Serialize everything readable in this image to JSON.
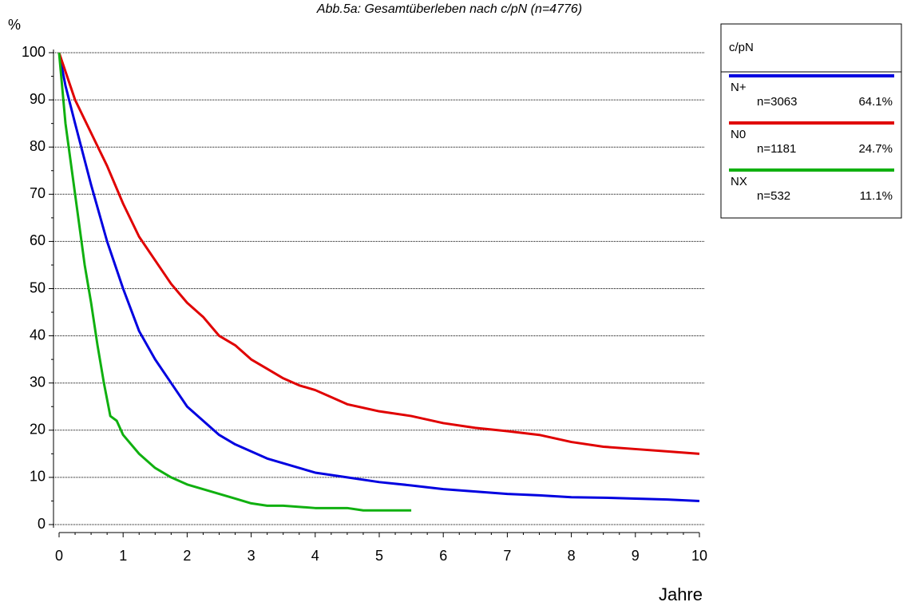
{
  "chart_data": {
    "type": "line",
    "title": "Abb.5a: Gesamtüberleben nach c/pN (n=4776)",
    "y_label": "%",
    "x_label": "Jahre",
    "xlim": [
      0,
      10
    ],
    "xticks": [
      0,
      1,
      2,
      3,
      4,
      5,
      6,
      7,
      8,
      9,
      10
    ],
    "ylim": [
      0,
      100
    ],
    "yticks": [
      0,
      10,
      20,
      30,
      40,
      50,
      60,
      70,
      80,
      90,
      100
    ],
    "grid": true,
    "legend": {
      "title": "c/pN",
      "position": "right"
    },
    "series": [
      {
        "name": "N+",
        "color": "#0000e0",
        "n_label": "n=3063",
        "share_label": "64.1%",
        "x": [
          0,
          0.1,
          0.25,
          0.5,
          0.75,
          1,
          1.25,
          1.5,
          1.75,
          2,
          2.25,
          2.5,
          2.75,
          3,
          3.25,
          3.5,
          3.75,
          4,
          4.5,
          5,
          5.5,
          6,
          6.5,
          7,
          7.5,
          8,
          8.5,
          9,
          9.5,
          10
        ],
        "values": [
          100,
          93,
          85,
          72,
          60,
          50,
          41,
          35,
          30,
          25,
          22,
          19,
          17,
          15.5,
          14,
          13,
          12,
          11,
          10,
          9,
          8.3,
          7.5,
          7,
          6.5,
          6.2,
          5.8,
          5.7,
          5.5,
          5.3,
          5
        ]
      },
      {
        "name": "N0",
        "color": "#e00000",
        "n_label": "n=1181",
        "share_label": "24.7%",
        "x": [
          0,
          0.1,
          0.25,
          0.5,
          0.75,
          1,
          1.25,
          1.5,
          1.75,
          2,
          2.25,
          2.5,
          2.75,
          3,
          3.25,
          3.5,
          3.75,
          4,
          4.25,
          4.5,
          5,
          5.5,
          6,
          6.5,
          7,
          7.5,
          8,
          8.5,
          9,
          9.5,
          10
        ],
        "values": [
          100,
          96,
          90,
          83,
          76,
          68,
          61,
          56,
          51,
          47,
          44,
          40,
          38,
          35,
          33,
          31,
          29.5,
          28.5,
          27,
          25.5,
          24,
          23,
          21.5,
          20.5,
          19.8,
          19,
          17.5,
          16.5,
          16,
          15.5,
          15
        ]
      },
      {
        "name": "NX",
        "color": "#10b010",
        "n_label": "n=532",
        "share_label": "11.1%",
        "x": [
          0,
          0.1,
          0.2,
          0.3,
          0.4,
          0.5,
          0.6,
          0.7,
          0.8,
          0.9,
          1,
          1.25,
          1.5,
          1.75,
          2,
          2.25,
          2.5,
          2.75,
          3,
          3.25,
          3.5,
          4,
          4.5,
          4.75,
          5,
          5.5
        ],
        "values": [
          100,
          85,
          75,
          65,
          55,
          47,
          38,
          30,
          23,
          22,
          19,
          15,
          12,
          10,
          8.5,
          7.5,
          6.5,
          5.5,
          4.5,
          4,
          4,
          3.5,
          3.5,
          3,
          3,
          3
        ]
      }
    ]
  }
}
